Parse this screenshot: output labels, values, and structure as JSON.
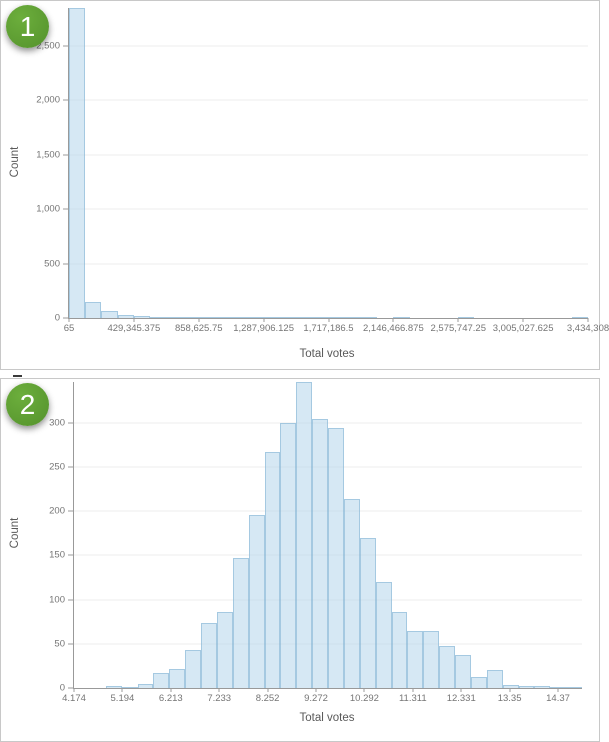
{
  "page": {
    "background": "#ffffff"
  },
  "panels": [
    {
      "badge_label": "1",
      "badge_color": "#5a9b2f"
    },
    {
      "badge_label": "2",
      "badge_color": "#5a9b2f"
    }
  ],
  "chart_data": [
    {
      "type": "bar",
      "variant": "histogram",
      "title": "",
      "xlabel": "Total votes",
      "ylabel": "Count",
      "legend": null,
      "grid": true,
      "bin_start": 65,
      "bin_width": 107320.09,
      "values": [
        2844,
        147,
        64,
        28,
        14,
        9,
        12,
        6,
        4,
        3,
        3,
        2,
        2,
        1,
        1,
        2,
        1,
        1,
        1,
        0,
        1,
        0,
        0,
        0,
        1,
        0,
        0,
        0,
        0,
        0,
        0,
        1
      ],
      "xlim": [
        65,
        3434308
      ],
      "x_tick_values": [
        65,
        429345.375,
        858625.75,
        1287906.125,
        1717186.5,
        2146466.875,
        2575747.25,
        3005027.625,
        3434308
      ],
      "x_tick_labels": [
        "65",
        "429,345.375",
        "858,625.75",
        "1,287,906.125",
        "1,717,186.5",
        "2,146,466.875",
        "2,575,747.25",
        "3,005,027.625",
        "3,434,308"
      ],
      "ylim": [
        0,
        2844
      ],
      "y_ticks": [
        0,
        500,
        1000,
        1500,
        2000,
        2500
      ],
      "y_tick_labels": [
        "0",
        "500",
        "1,000",
        "1,500",
        "2,000",
        "2,500"
      ],
      "bar_color": "rgba(174, 210, 233, 0.5)",
      "bar_border_color": "rgba(126, 174, 210, 0.55)"
    },
    {
      "type": "bar",
      "variant": "histogram",
      "title": "",
      "xlabel": "Total votes",
      "ylabel": "Count",
      "legend": null,
      "grid": true,
      "bin_start": 4.174,
      "bin_width": 0.3344,
      "values": [
        0,
        0,
        2,
        1,
        4,
        17,
        22,
        43,
        73,
        86,
        147,
        196,
        267,
        300,
        346,
        304,
        294,
        214,
        170,
        120,
        86,
        64,
        64,
        48,
        37,
        13,
        20,
        3,
        2,
        2,
        1,
        1
      ],
      "xlim": [
        4.174,
        14.8752
      ],
      "x_tick_values": [
        4.174,
        5.194,
        6.213,
        7.233,
        8.252,
        9.272,
        10.292,
        11.311,
        12.331,
        13.35,
        14.37
      ],
      "x_tick_labels": [
        "4.174",
        "5.194",
        "6.213",
        "7.233",
        "8.252",
        "9.272",
        "10.292",
        "11.311",
        "12.331",
        "13.35",
        "14.37"
      ],
      "ylim": [
        0,
        346
      ],
      "y_ticks": [
        0,
        50,
        100,
        150,
        200,
        250,
        300
      ],
      "y_tick_labels": [
        "0",
        "50",
        "100",
        "150",
        "200",
        "250",
        "300"
      ],
      "bar_color": "rgba(174, 210, 233, 0.5)",
      "bar_border_color": "rgba(126, 174, 210, 0.55)"
    }
  ]
}
